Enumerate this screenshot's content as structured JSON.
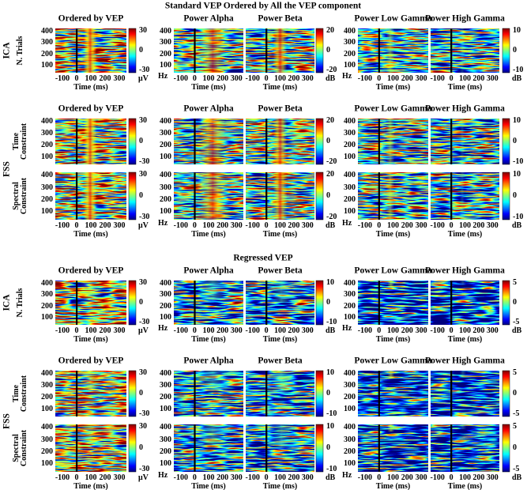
{
  "sections": [
    {
      "title": "Standard VEP Ordered by All the VEP component",
      "colorbars": [
        {
          "ticks": [
            "30",
            "0",
            "-30"
          ],
          "unit": "μV"
        },
        {
          "ticks": [
            "20",
            "0",
            "-20"
          ],
          "unit": "dB"
        },
        {
          "ticks": [
            "10",
            "0",
            "-10"
          ],
          "unit": "dB"
        }
      ],
      "rows": [
        {
          "group": "ICA",
          "label": "N. Trials",
          "titles": [
            "Ordered by VEP",
            "Power Alpha",
            "Power Beta",
            "Power Low Gamma",
            "Power High Gamma"
          ]
        },
        {
          "group": "FSS",
          "label": "Time Constraint",
          "titles": [
            "Ordered by VEP",
            "Power Alpha",
            "Power Beta",
            "Power Low Gamma",
            "Power High Gamma"
          ]
        },
        {
          "label": "Spectral Constraint"
        }
      ]
    },
    {
      "title": "Regressed VEP",
      "colorbars": [
        {
          "ticks": [
            "30",
            "0",
            "-30"
          ],
          "unit": "μV"
        },
        {
          "ticks": [
            "10",
            "0",
            "-10"
          ],
          "unit": "dB"
        },
        {
          "ticks": [
            "5",
            "0",
            "-5"
          ],
          "unit": "dB"
        }
      ],
      "rows": [
        {
          "group": "ICA",
          "label": "N. Trials",
          "titles": [
            "Ordered by VEP",
            "Power Alpha",
            "Power Beta",
            "Power Low Gamma",
            "Power High Gamma"
          ]
        },
        {
          "group": "FSS",
          "label": "Time Constraint",
          "titles": [
            "Ordered by VEP",
            "Power Alpha",
            "Power Beta",
            "Power Low Gamma",
            "Power High Gamma"
          ]
        },
        {
          "label": "Spectral Constraint"
        }
      ]
    }
  ],
  "axes": {
    "yticks": [
      "400",
      "300",
      "200",
      "100"
    ],
    "xticks": [
      "-100",
      "0",
      "100",
      "200",
      "300"
    ],
    "xlabel": "Time (ms)",
    "hz": "Hz"
  }
}
